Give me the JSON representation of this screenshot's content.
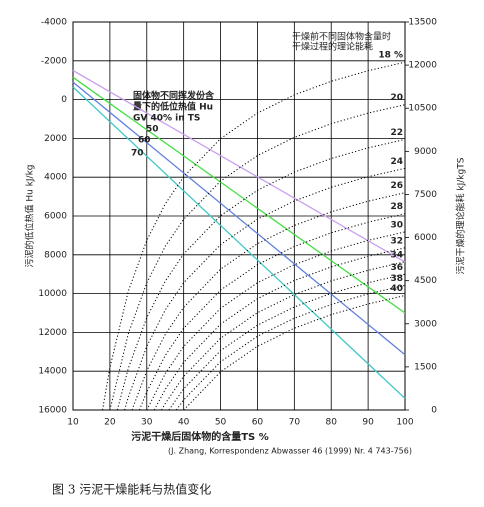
{
  "chart_data": {
    "type": "line",
    "x": [
      10,
      100
    ],
    "xlim": [
      10,
      100
    ],
    "xticks": [
      10,
      20,
      30,
      40,
      50,
      60,
      70,
      80,
      90,
      100
    ],
    "ylim": [
      -4000,
      16000
    ],
    "y_inverted": true,
    "yticks": [
      -4000,
      -2000,
      0,
      2000,
      4000,
      6000,
      8000,
      10000,
      12000,
      14000,
      16000
    ],
    "y2lim": [
      0,
      13500
    ],
    "y2ticks": [
      0,
      1500,
      3000,
      4500,
      6000,
      7500,
      9000,
      10500,
      12000,
      13500
    ],
    "grid": true,
    "ylabel": "污泥的低位热值 Hu kJ/kg",
    "y2label": "污泥干燥的理论能耗 kJ/kgTS",
    "xlabel": "污泥干燥后固体物的含量TS %",
    "source": "(J. Zhang, Korrespondenz Abwasser 46 (1999) Nr. 4 743-756)",
    "legend_title": [
      "固体物不同挥发份含",
      "量下的低位热值 Hu"
    ],
    "y2_note": [
      "干燥前不同固体物含量时",
      "干燥过程的理论能耗"
    ],
    "caption": "图 3  污泥干燥能耗与热值变化",
    "series": [
      {
        "name": "GV 40% in TS",
        "color": "#c8a0f0",
        "values": [
          -1500,
          8370
        ]
      },
      {
        "name": "50",
        "color": "#40e040",
        "values": [
          -1150,
          11000
        ]
      },
      {
        "name": "60",
        "color": "#6080e0",
        "values": [
          -900,
          13150
        ]
      },
      {
        "name": "70",
        "color": "#40c8c8",
        "values": [
          -650,
          15400
        ]
      },
      {
        "name": "18 %",
        "axis": "y2",
        "dotted": true,
        "x": [
          18,
          20,
          25,
          30,
          35,
          40,
          50,
          60,
          70,
          80,
          90,
          100
        ],
        "values": [
          0,
          1476,
          4132,
          5903,
          7167,
          8116,
          9444,
          10329,
          10962,
          11436,
          11805,
          12100
        ]
      },
      {
        "name": "20",
        "axis": "y2",
        "dotted": true,
        "x": [
          20,
          25,
          30,
          35,
          40,
          50,
          60,
          70,
          80,
          90,
          100
        ],
        "values": [
          0,
          2656,
          4427,
          5691,
          6640,
          7968,
          8853,
          9486,
          9960,
          10329,
          10624
        ]
      },
      {
        "name": "22",
        "axis": "y2",
        "dotted": true,
        "x": [
          22,
          25,
          30,
          35,
          40,
          50,
          60,
          70,
          80,
          90,
          100
        ],
        "values": [
          0,
          1448,
          3219,
          4483,
          5432,
          6760,
          7644,
          8276,
          8752,
          9121,
          9416
        ]
      },
      {
        "name": "24",
        "axis": "y2",
        "dotted": true,
        "x": [
          24,
          25,
          30,
          35,
          40,
          50,
          60,
          70,
          80,
          90,
          100
        ],
        "values": [
          0,
          444,
          2215,
          3479,
          4428,
          5756,
          6640,
          7272,
          7748,
          8117,
          8411
        ]
      },
      {
        "name": "26",
        "axis": "y2",
        "dotted": true,
        "x": [
          26,
          30,
          35,
          40,
          50,
          60,
          70,
          80,
          90,
          100
        ],
        "values": [
          0,
          1363,
          2627,
          3575,
          4903,
          5787,
          6420,
          6895,
          7264,
          7559
        ]
      },
      {
        "name": "28",
        "axis": "y2",
        "dotted": true,
        "x": [
          28,
          30,
          35,
          40,
          50,
          60,
          70,
          80,
          90,
          100
        ],
        "values": [
          0,
          632,
          1896,
          2845,
          4173,
          5057,
          5689,
          6165,
          6534,
          6829
        ]
      },
      {
        "name": "30",
        "axis": "y2",
        "dotted": true,
        "x": [
          30,
          35,
          40,
          50,
          60,
          70,
          80,
          90,
          100
        ],
        "values": [
          0,
          1264,
          2213,
          3540,
          4425,
          5057,
          5532,
          5902,
          6197
        ]
      },
      {
        "name": "32",
        "axis": "y2",
        "dotted": true,
        "x": [
          32,
          35,
          40,
          50,
          60,
          70,
          80,
          90,
          100
        ],
        "values": [
          0,
          712,
          1660,
          2988,
          3872,
          4505,
          4980,
          5349,
          5644
        ]
      },
      {
        "name": "34",
        "axis": "y2",
        "dotted": true,
        "x": [
          34,
          35,
          40,
          50,
          60,
          70,
          80,
          90,
          100
        ],
        "values": [
          0,
          223,
          1171,
          2499,
          3384,
          4016,
          4491,
          4860,
          5155
        ]
      },
      {
        "name": "36",
        "axis": "y2",
        "dotted": true,
        "x": [
          36,
          40,
          50,
          60,
          70,
          80,
          90,
          100
        ],
        "values": [
          0,
          738,
          2066,
          2951,
          3583,
          4058,
          4428,
          4722
        ]
      },
      {
        "name": "38",
        "axis": "y2",
        "dotted": true,
        "x": [
          38,
          40,
          50,
          60,
          70,
          80,
          90,
          100
        ],
        "values": [
          0,
          351,
          1679,
          2563,
          3195,
          3671,
          4040,
          4335
        ]
      },
      {
        "name": "40",
        "axis": "y2",
        "dotted": true,
        "x": [
          40,
          50,
          60,
          70,
          80,
          90,
          100
        ],
        "values": [
          0,
          1328,
          2212,
          2845,
          3320,
          3689,
          3984
        ]
      }
    ]
  }
}
